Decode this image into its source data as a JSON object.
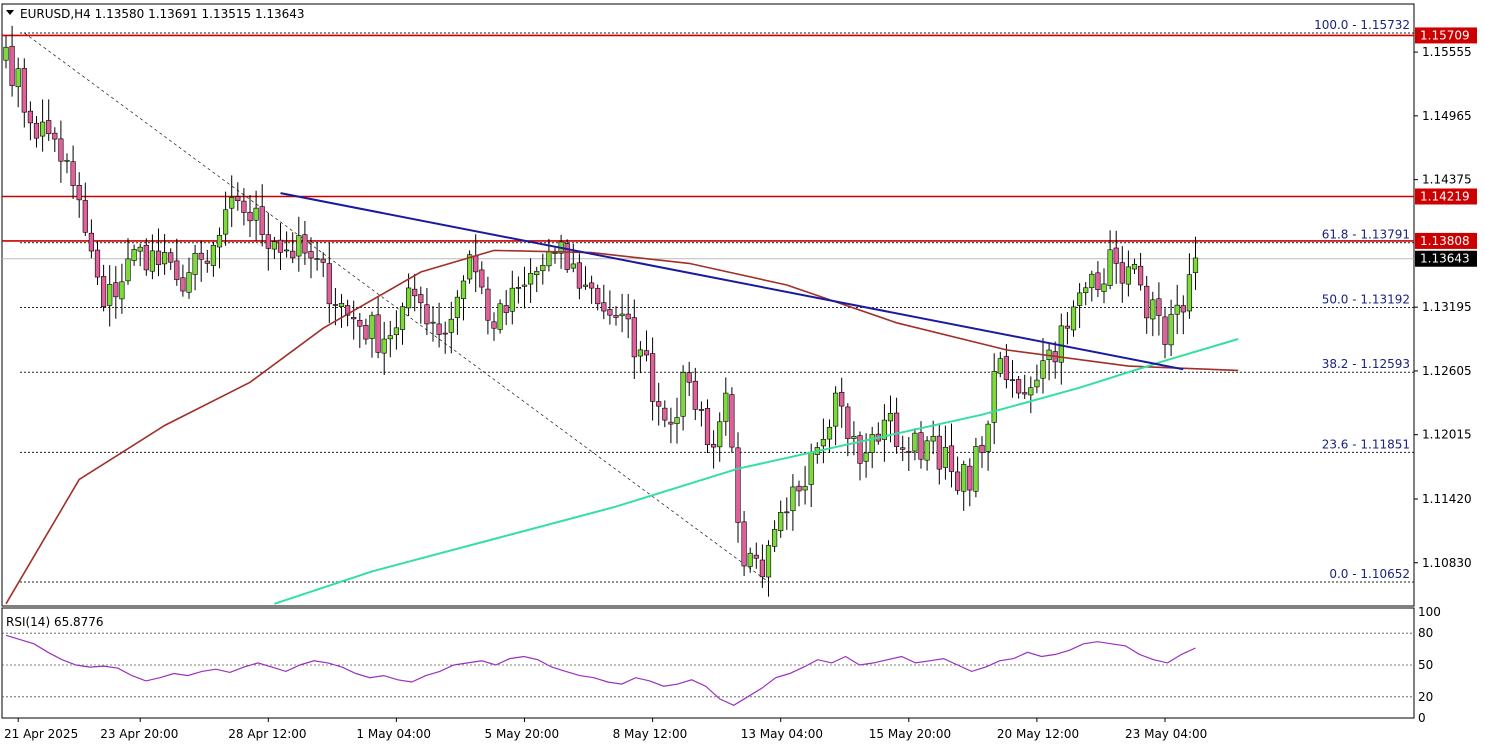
{
  "header": {
    "symbol_label": "EURUSD,H4",
    "ohlc": "1.13580 1.13691 1.13515 1.13643"
  },
  "rsi_header": "RSI(14) 65.8776",
  "colors": {
    "bull": "#7cdb3a",
    "bear": "#e0609a",
    "ma_slow": "#a0302a",
    "ma_fast": "#33e0a0",
    "trendline": "#1a1aa0",
    "resistance": "#cc0000",
    "rsi": "#9b30c0"
  },
  "chart_data": [
    {
      "type": "candlestick",
      "title": "EURUSD,H4",
      "x_ticks": [
        "21 Apr 2025",
        "23 Apr 20:00",
        "28 Apr 12:00",
        "1 May 04:00",
        "5 May 20:00",
        "8 May 12:00",
        "13 May 04:00",
        "15 May 20:00",
        "20 May 12:00",
        "23 May 04:00"
      ],
      "y_ticks": [
        "1.15555",
        "1.14965",
        "1.14375",
        "1.13195",
        "1.12605",
        "1.12015",
        "1.11420",
        "1.10830"
      ],
      "ylim": [
        1.1043,
        1.16
      ],
      "grid": false,
      "candle_anchors": [
        {
          "i": 0,
          "close": 1.156
        },
        {
          "i": 4,
          "close": 1.149
        },
        {
          "i": 8,
          "close": 1.1475
        },
        {
          "i": 11,
          "close": 1.1432
        },
        {
          "i": 16,
          "close": 1.132
        },
        {
          "i": 22,
          "close": 1.1375
        },
        {
          "i": 28,
          "close": 1.1345
        },
        {
          "i": 33,
          "close": 1.136
        },
        {
          "i": 38,
          "close": 1.1418
        },
        {
          "i": 44,
          "close": 1.138
        },
        {
          "i": 50,
          "close": 1.1365
        },
        {
          "i": 56,
          "close": 1.1312
        },
        {
          "i": 62,
          "close": 1.129
        },
        {
          "i": 67,
          "close": 1.133
        },
        {
          "i": 72,
          "close": 1.1295
        },
        {
          "i": 76,
          "close": 1.1368
        },
        {
          "i": 80,
          "close": 1.13
        },
        {
          "i": 85,
          "close": 1.134
        },
        {
          "i": 90,
          "close": 1.137
        },
        {
          "i": 95,
          "close": 1.134
        },
        {
          "i": 100,
          "close": 1.131
        },
        {
          "i": 104,
          "close": 1.128
        },
        {
          "i": 108,
          "close": 1.1215
        },
        {
          "i": 112,
          "close": 1.125
        },
        {
          "i": 116,
          "close": 1.119
        },
        {
          "i": 118,
          "close": 1.124
        },
        {
          "i": 121,
          "close": 1.108
        },
        {
          "i": 124,
          "close": 1.107
        },
        {
          "i": 128,
          "close": 1.113
        },
        {
          "i": 132,
          "close": 1.1185
        },
        {
          "i": 136,
          "close": 1.124
        },
        {
          "i": 140,
          "close": 1.1175
        },
        {
          "i": 144,
          "close": 1.1215
        },
        {
          "i": 148,
          "close": 1.1185
        },
        {
          "i": 152,
          "close": 1.12
        },
        {
          "i": 156,
          "close": 1.115
        },
        {
          "i": 160,
          "close": 1.1185
        },
        {
          "i": 162,
          "close": 1.126
        },
        {
          "i": 166,
          "close": 1.124
        },
        {
          "i": 170,
          "close": 1.127
        },
        {
          "i": 174,
          "close": 1.13
        },
        {
          "i": 178,
          "close": 1.135
        },
        {
          "i": 182,
          "close": 1.136
        },
        {
          "i": 186,
          "close": 1.134
        },
        {
          "i": 190,
          "close": 1.1285
        },
        {
          "i": 193,
          "close": 1.1315
        },
        {
          "i": 195,
          "close": 1.1365
        }
      ],
      "moving_averages": [
        {
          "name": "slow",
          "points": [
            [
              0,
              1.1045
            ],
            [
              12,
              1.116
            ],
            [
              26,
              1.121
            ],
            [
              40,
              1.125
            ],
            [
              52,
              1.13
            ],
            [
              68,
              1.1352
            ],
            [
              80,
              1.1372
            ],
            [
              96,
              1.137
            ],
            [
              112,
              1.136
            ],
            [
              128,
              1.134
            ],
            [
              146,
              1.1305
            ],
            [
              164,
              1.128
            ],
            [
              184,
              1.1265
            ],
            [
              202,
              1.1261
            ]
          ]
        },
        {
          "name": "fast",
          "points": [
            [
              44,
              1.1045
            ],
            [
              60,
              1.1075
            ],
            [
              80,
              1.1105
            ],
            [
              100,
              1.1135
            ],
            [
              120,
              1.117
            ],
            [
              140,
              1.1195
            ],
            [
              160,
              1.122
            ],
            [
              176,
              1.1245
            ],
            [
              190,
              1.127
            ],
            [
              202,
              1.129
            ]
          ]
        }
      ],
      "trendlines": [
        {
          "name": "descending-trendline",
          "from": [
            45,
            1.1425
          ],
          "to": [
            193,
            1.1262
          ]
        }
      ],
      "fibonacci": [
        {
          "ratio": "100.0",
          "price": "1.15732",
          "y": 1.15732
        },
        {
          "ratio": "61.8",
          "price": "1.13791",
          "y": 1.13791
        },
        {
          "ratio": "50.0",
          "price": "1.13192",
          "y": 1.13192
        },
        {
          "ratio": "38.2",
          "price": "1.12593",
          "y": 1.12593
        },
        {
          "ratio": "23.6",
          "price": "1.11851",
          "y": 1.11851
        },
        {
          "ratio": "0.0",
          "price": "1.10652",
          "y": 1.10652
        }
      ],
      "fib_diagonal": {
        "from": [
          3,
          1.15732
        ],
        "to": [
          125,
          1.10652
        ]
      },
      "resistance_levels": [
        {
          "label": "1.15709",
          "y": 1.15709
        },
        {
          "label": "1.14219",
          "y": 1.14219
        },
        {
          "label": "1.13808",
          "y": 1.13808
        }
      ],
      "current_price": {
        "label": "1.13643",
        "y": 1.13643
      }
    },
    {
      "type": "line",
      "title": "RSI(14) 65.8776",
      "ylim": [
        0,
        100
      ],
      "y_ticks": [
        "100",
        "80",
        "50",
        "20",
        "0"
      ],
      "levels": [
        80,
        50,
        20
      ],
      "values": [
        78,
        74,
        70,
        62,
        55,
        50,
        48,
        49,
        47,
        40,
        35,
        38,
        42,
        40,
        44,
        46,
        43,
        48,
        52,
        48,
        44,
        50,
        54,
        52,
        48,
        42,
        38,
        40,
        36,
        34,
        40,
        44,
        50,
        52,
        54,
        50,
        56,
        58,
        55,
        48,
        44,
        40,
        38,
        34,
        32,
        38,
        35,
        30,
        32,
        36,
        30,
        18,
        12,
        20,
        28,
        38,
        42,
        48,
        55,
        52,
        58,
        50,
        52,
        55,
        58,
        52,
        54,
        56,
        50,
        44,
        48,
        54,
        56,
        62,
        58,
        60,
        64,
        70,
        72,
        70,
        68,
        60,
        55,
        52,
        60,
        66
      ]
    }
  ],
  "last_candle_index": 195,
  "total_slots": 203
}
